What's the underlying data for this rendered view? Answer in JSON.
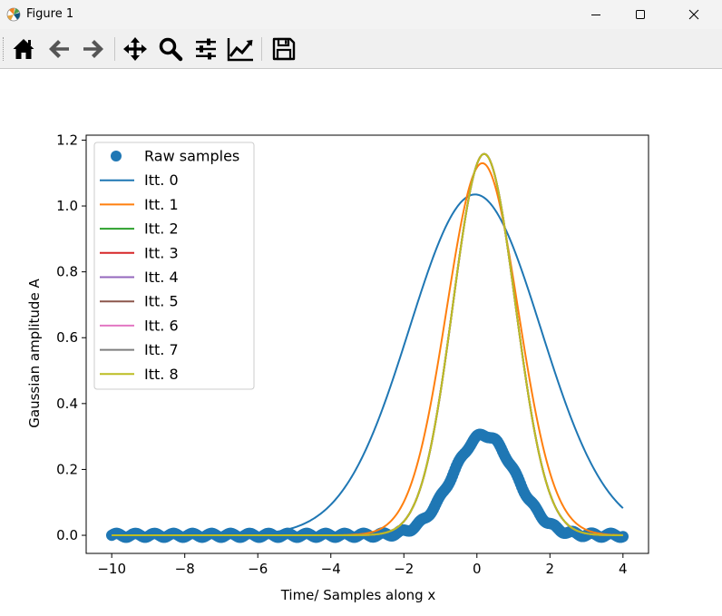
{
  "window": {
    "title": "Figure 1",
    "icon": "matplotlib-logo-icon",
    "controls": [
      "minimize-icon",
      "maximize-icon",
      "close-icon"
    ]
  },
  "toolbar": {
    "buttons": [
      {
        "name": "home-button",
        "icon": "home-icon"
      },
      {
        "name": "back-button",
        "icon": "arrow-left-icon"
      },
      {
        "name": "forward-button",
        "icon": "arrow-right-icon"
      },
      {
        "name": "pan-button",
        "icon": "move-icon"
      },
      {
        "name": "zoom-button",
        "icon": "magnifier-icon"
      },
      {
        "name": "subplots-button",
        "icon": "sliders-icon"
      },
      {
        "name": "axes-edit-button",
        "icon": "line-chart-icon"
      },
      {
        "name": "save-button",
        "icon": "floppy-disk-icon"
      }
    ]
  },
  "chart_data": {
    "type": "line",
    "xlabel": "Time/ Samples along x",
    "ylabel": "Gaussian amplitude A",
    "xlim": [
      -10.7,
      4.7
    ],
    "ylim": [
      -0.055,
      1.215
    ],
    "xticks": [
      -10,
      -8,
      -6,
      -4,
      -2,
      0,
      2,
      4
    ],
    "xtick_labels": [
      "−10",
      "−8",
      "−6",
      "−4",
      "−2",
      "0",
      "2",
      "4"
    ],
    "yticks": [
      0.0,
      0.2,
      0.4,
      0.6,
      0.8,
      1.0,
      1.2
    ],
    "ytick_labels": [
      "0.0",
      "0.2",
      "0.4",
      "0.6",
      "0.8",
      "1.0",
      "1.2"
    ],
    "grid": false,
    "legend_position": "upper-left",
    "x_range": [
      -10,
      4
    ],
    "raw_samples": {
      "name": "Raw samples",
      "marker": "circle",
      "color": "#1f77b4",
      "model": "gaussian",
      "amplitude": 0.305,
      "mu": 0.2,
      "sigma": 0.86
    },
    "series": [
      {
        "name": "Itt. 0",
        "color": "#1f77b4",
        "amplitude": 1.035,
        "mu": -0.05,
        "sigma": 1.8
      },
      {
        "name": "Itt. 1",
        "color": "#ff7f0e",
        "amplitude": 1.13,
        "mu": 0.15,
        "sigma": 0.98
      },
      {
        "name": "Itt. 2",
        "color": "#2ca02c",
        "amplitude": 1.158,
        "mu": 0.2,
        "sigma": 0.855
      },
      {
        "name": "Itt. 3",
        "color": "#d62728",
        "amplitude": 1.158,
        "mu": 0.2,
        "sigma": 0.855
      },
      {
        "name": "Itt. 4",
        "color": "#9467bd",
        "amplitude": 1.158,
        "mu": 0.2,
        "sigma": 0.855
      },
      {
        "name": "Itt. 5",
        "color": "#8c564b",
        "amplitude": 1.158,
        "mu": 0.2,
        "sigma": 0.855
      },
      {
        "name": "Itt. 6",
        "color": "#e377c2",
        "amplitude": 1.158,
        "mu": 0.2,
        "sigma": 0.855
      },
      {
        "name": "Itt. 7",
        "color": "#7f7f7f",
        "amplitude": 1.158,
        "mu": 0.2,
        "sigma": 0.855
      },
      {
        "name": "Itt. 8",
        "color": "#bcbd22",
        "amplitude": 1.158,
        "mu": 0.2,
        "sigma": 0.855
      }
    ]
  }
}
